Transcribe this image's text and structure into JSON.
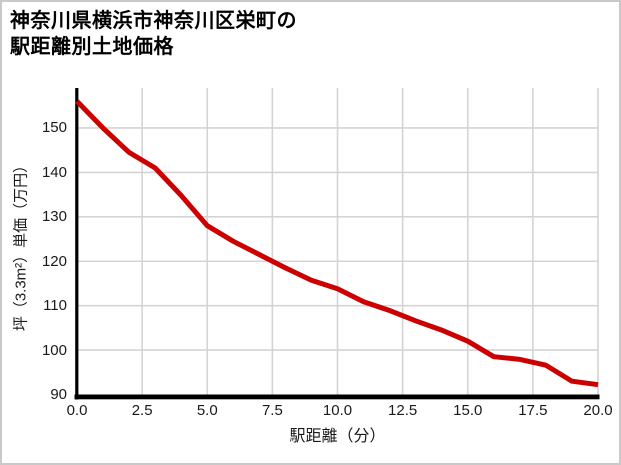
{
  "title": "神奈川県横浜市神奈川区栄町の\n駅距離別土地価格",
  "chart_data": {
    "type": "line",
    "title": "神奈川県横浜市神奈川区栄町の駅距離別土地価格",
    "xlabel": "駅距離（分）",
    "ylabel": "坪（3.3m²）単価（万円）",
    "series": [
      {
        "name": "坪単価",
        "x": [
          0,
          1,
          2,
          3,
          4,
          5,
          6,
          7,
          8,
          9,
          10,
          11,
          12,
          13,
          14,
          15,
          16,
          17,
          18,
          19,
          20
        ],
        "values": [
          156.0,
          150.0,
          144.5,
          141.0,
          134.8,
          128.0,
          124.5,
          121.5,
          118.5,
          115.7,
          113.8,
          110.9,
          108.9,
          106.6,
          104.5,
          102.0,
          98.5,
          97.9,
          96.6,
          93.0,
          92.2
        ]
      }
    ],
    "xlim": [
      0,
      20
    ],
    "ylim": [
      90,
      159
    ],
    "xticks": [
      0,
      2.5,
      5,
      7.5,
      10,
      12.5,
      15,
      17.5,
      20
    ],
    "xtick_labels": [
      "0.0",
      "2.5",
      "5.0",
      "7.5",
      "10.0",
      "12.5",
      "15.0",
      "17.5",
      "20.0"
    ],
    "yticks": [
      90,
      100,
      110,
      120,
      130,
      140,
      150
    ],
    "ytick_labels": [
      "90",
      "100",
      "110",
      "120",
      "130",
      "140",
      "150"
    ],
    "grid": true,
    "legend": "none",
    "colors": {
      "line": "#cc0000",
      "grid": "#d4d4d4",
      "spine": "#000000",
      "text": "#1a1a1a",
      "title": "#000000",
      "background": "#ffffff",
      "frame_border": "#c9c9c9"
    }
  }
}
